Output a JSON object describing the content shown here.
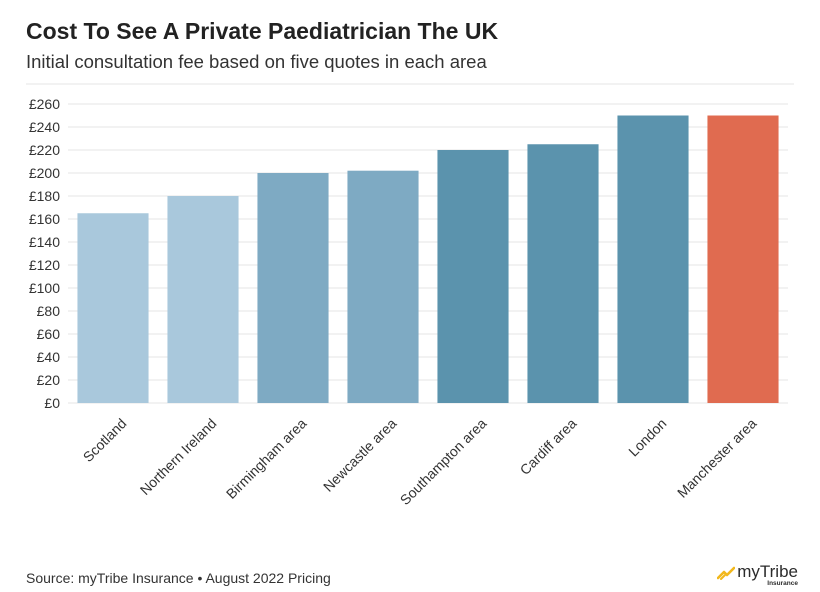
{
  "header": {
    "title": "Cost To See A Private Paediatrician The UK",
    "subtitle": "Initial consultation fee based on five quotes in each area"
  },
  "footer": {
    "source": "Source: myTribe Insurance • August 2022 Pricing",
    "logo_brand": "myTribe",
    "logo_sub": "Insurance"
  },
  "chart_data": {
    "type": "bar",
    "title": "Cost To See A Private Paediatrician The UK",
    "subtitle": "Initial consultation fee based on five quotes in each area",
    "categories": [
      "Scotland",
      "Northern Ireland",
      "Birmingham area",
      "Newcastle area",
      "Southampton area",
      "Cardiff area",
      "London",
      "Manchester area"
    ],
    "values": [
      165,
      180,
      200,
      202,
      220,
      225,
      250,
      250
    ],
    "colors": [
      "#a9c8dc",
      "#a9c8dc",
      "#7eaac3",
      "#7eaac3",
      "#5b93ad",
      "#5b93ad",
      "#5b93ad",
      "#e06b50"
    ],
    "ylim": [
      0,
      260
    ],
    "yticks": [
      0,
      20,
      40,
      60,
      80,
      100,
      120,
      140,
      160,
      180,
      200,
      220,
      240,
      260
    ],
    "ytick_labels": [
      "£0",
      "£20",
      "£40",
      "£60",
      "£80",
      "£100",
      "£120",
      "£140",
      "£160",
      "£180",
      "£200",
      "£220",
      "£240",
      "£260"
    ],
    "xlabel": "",
    "ylabel": "",
    "grid": true,
    "legend": "none"
  }
}
